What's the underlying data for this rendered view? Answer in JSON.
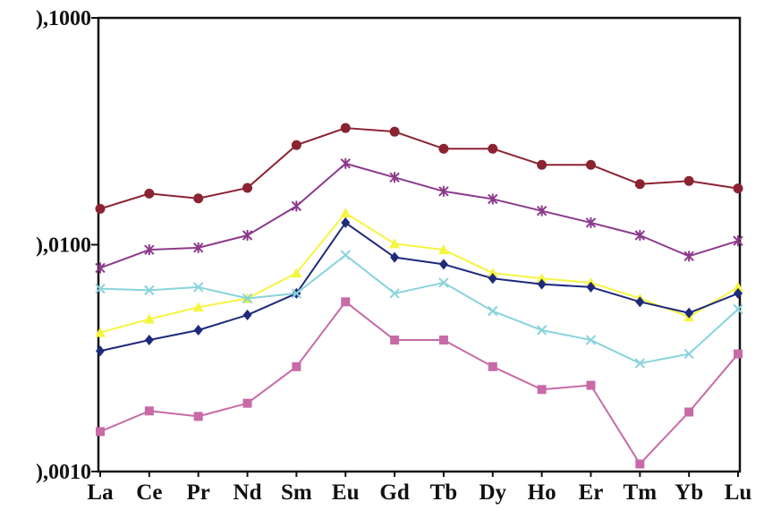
{
  "chart_data": {
    "type": "line",
    "title": "",
    "xlabel": "",
    "ylabel": "",
    "y_scale": "log",
    "ylim": [
      0.001,
      0.1
    ],
    "y_ticks": [
      {
        "value": 0.1,
        "label": "),1000"
      },
      {
        "value": 0.01,
        "label": "),0100"
      },
      {
        "value": 0.001,
        "label": "),0010"
      }
    ],
    "categories": [
      "La",
      "Ce",
      "Pr",
      "Nd",
      "Sm",
      "Eu",
      "Gd",
      "Tb",
      "Dy",
      "Ho",
      "Er",
      "Tm",
      "Yb",
      "Lu"
    ],
    "grid": false,
    "legend": "none",
    "series": [
      {
        "color": "#8b2332",
        "marker": "circle",
        "values": [
          0.0144,
          0.0168,
          0.016,
          0.0178,
          0.0275,
          0.0327,
          0.0315,
          0.0265,
          0.0265,
          0.0225,
          0.0225,
          0.0185,
          0.0191,
          0.0177
        ]
      },
      {
        "color": "#8c3a8c",
        "marker": "star",
        "values": [
          0.0079,
          0.0095,
          0.0097,
          0.011,
          0.0148,
          0.0228,
          0.0198,
          0.0172,
          0.0159,
          0.0141,
          0.0125,
          0.011,
          0.0089,
          0.0104
        ]
      },
      {
        "color": "#f5f542",
        "marker": "triangle",
        "values": [
          0.0041,
          0.0047,
          0.0053,
          0.0058,
          0.0075,
          0.0138,
          0.0101,
          0.0095,
          0.0075,
          0.0071,
          0.0068,
          0.0058,
          0.0048,
          0.0065
        ]
      },
      {
        "color": "#1e2a7a",
        "marker": "diamond",
        "values": [
          0.0034,
          0.0038,
          0.0042,
          0.0049,
          0.0061,
          0.0125,
          0.0088,
          0.0082,
          0.0071,
          0.0067,
          0.0065,
          0.0056,
          0.005,
          0.0061
        ]
      },
      {
        "color": "#88d4dc",
        "marker": "cross",
        "values": [
          0.0064,
          0.0063,
          0.0065,
          0.0058,
          0.0061,
          0.009,
          0.0061,
          0.0068,
          0.0051,
          0.0042,
          0.0038,
          0.003,
          0.0033,
          0.0052
        ]
      },
      {
        "color": "#c86aa8",
        "marker": "square",
        "values": [
          0.0015,
          0.00185,
          0.00175,
          0.002,
          0.0029,
          0.0056,
          0.0038,
          0.0038,
          0.0029,
          0.0023,
          0.0024,
          0.00108,
          0.00183,
          0.0033
        ]
      }
    ]
  }
}
